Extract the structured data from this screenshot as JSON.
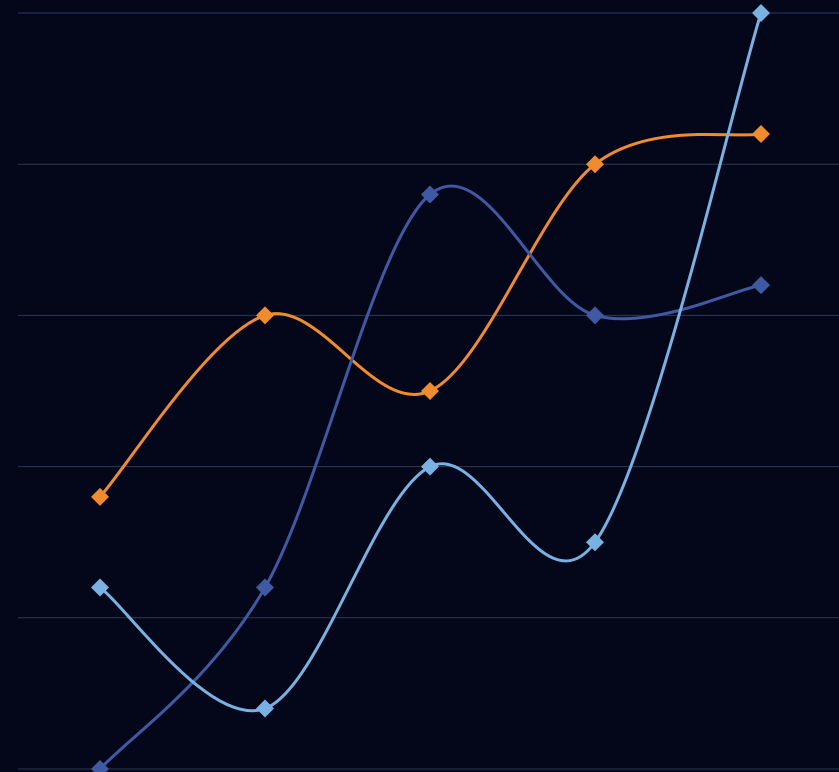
{
  "colors": {
    "background": "#04071a",
    "grid": "#2a3a55"
  },
  "chart_data": {
    "type": "line",
    "title": "",
    "xlabel": "",
    "ylabel": "",
    "x": [
      1,
      2,
      3,
      4,
      5
    ],
    "ylim": [
      0,
      5
    ],
    "grid": true,
    "smooth": true,
    "marker": "diamond",
    "legend": "none",
    "series": [
      {
        "color": "#f08c2e",
        "values": [
          1.8,
          3.0,
          2.5,
          4.0,
          4.2
        ]
      },
      {
        "color": "#3f5aa3",
        "values": [
          0.0,
          1.2,
          3.8,
          3.0,
          3.2
        ]
      },
      {
        "color": "#7ab1e3",
        "values": [
          1.2,
          0.4,
          2.0,
          1.5,
          5.0
        ]
      }
    ]
  }
}
